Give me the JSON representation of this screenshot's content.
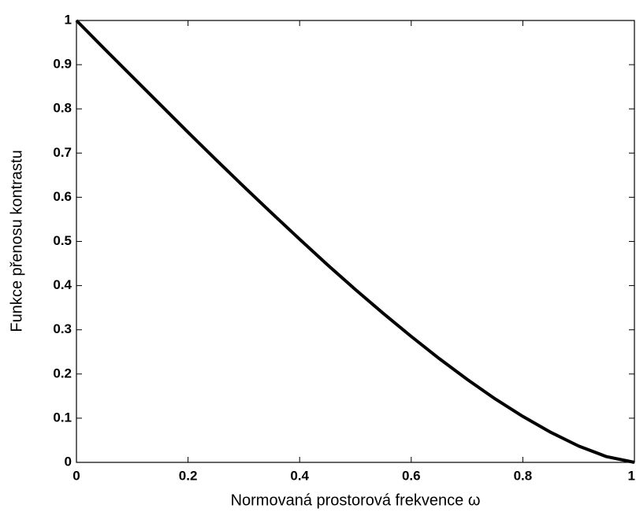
{
  "chart_data": {
    "type": "line",
    "xlabel": "Normovaná prostorová frekvence ω",
    "ylabel": "Funkce přenosu kontrastu",
    "x": [
      0,
      0.05,
      0.1,
      0.15,
      0.2,
      0.25,
      0.3,
      0.35,
      0.4,
      0.45,
      0.5,
      0.55,
      0.6,
      0.65,
      0.7,
      0.75,
      0.8,
      0.85,
      0.9,
      0.95,
      1
    ],
    "series": [
      {
        "color": "#000000",
        "values": [
          1,
          0.936,
          0.873,
          0.81,
          0.747,
          0.685,
          0.624,
          0.564,
          0.505,
          0.447,
          0.391,
          0.337,
          0.285,
          0.235,
          0.188,
          0.144,
          0.104,
          0.068,
          0.037,
          0.013,
          0
        ]
      }
    ],
    "xlim": [
      0,
      1
    ],
    "ylim": [
      0,
      1
    ],
    "xticks": [
      0,
      0.2,
      0.4,
      0.6,
      0.8,
      1
    ],
    "yticks": [
      0,
      0.1,
      0.2,
      0.3,
      0.4,
      0.5,
      0.6,
      0.7,
      0.8,
      0.9,
      1
    ],
    "grid": false
  }
}
